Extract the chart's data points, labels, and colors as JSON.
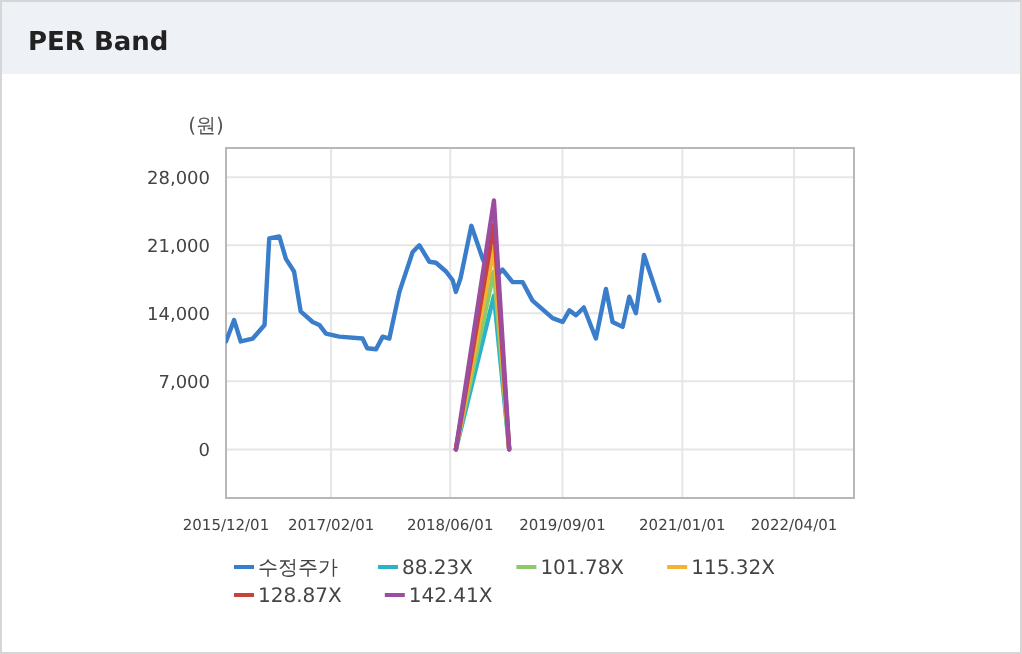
{
  "chart_data": {
    "type": "line",
    "title": "PER Band",
    "ylabel": "(원)",
    "xlim": [
      "2015-12-01",
      "2022-12-01"
    ],
    "xticks": [
      {
        "value": "2015-12-01",
        "label": "2015/12/01"
      },
      {
        "value": "2017-02-01",
        "label": "2017/02/01"
      },
      {
        "value": "2018-06-01",
        "label": "2018/06/01"
      },
      {
        "value": "2019-09-01",
        "label": "2019/09/01"
      },
      {
        "value": "2021-01-01",
        "label": "2021/01/01"
      },
      {
        "value": "2022-04-01",
        "label": "2022/04/01"
      }
    ],
    "ylim": [
      -5000,
      31000
    ],
    "yticks": [
      0,
      {
        "value": 7000,
        "label": "7,000"
      },
      {
        "value": 14000,
        "label": "14,000"
      },
      {
        "value": 21000,
        "label": "21,000"
      },
      {
        "value": 28000,
        "label": "28,000"
      }
    ],
    "grid": true,
    "legend": "bottom",
    "marker": "none",
    "line_style": "solid",
    "series": [
      {
        "name": "수정주가",
        "color": "#3a7ecb",
        "x": [
          "2015-12-01",
          "2016-01-03",
          "2016-01-30",
          "2016-03-19",
          "2016-05-06",
          "2016-05-25",
          "2016-07-05",
          "2016-08-01",
          "2016-09-03",
          "2016-09-30",
          "2016-11-18",
          "2016-12-15",
          "2017-01-11",
          "2017-03-06",
          "2017-06-09",
          "2017-06-28",
          "2017-08-03",
          "2017-08-30",
          "2017-09-26",
          "2017-11-06",
          "2017-12-30",
          "2018-01-26",
          "2018-03-08",
          "2018-04-04",
          "2018-05-15",
          "2018-06-11",
          "2018-06-24",
          "2018-07-13",
          "2018-08-26",
          "2018-10-11",
          "2018-11-21",
          "2018-12-31",
          "2019-02-10",
          "2019-03-23",
          "2019-05-02",
          "2019-07-23",
          "2019-09-02",
          "2019-09-29",
          "2019-10-26",
          "2019-11-27",
          "2020-01-15",
          "2020-02-25",
          "2020-03-23",
          "2020-05-03",
          "2020-05-30",
          "2020-06-26",
          "2020-07-29",
          "2020-09-29"
        ],
        "values": [
          11100,
          13300,
          11100,
          11400,
          12800,
          21700,
          21900,
          19600,
          18300,
          14200,
          13100,
          12800,
          11900,
          11600,
          11400,
          10400,
          10300,
          11600,
          11400,
          16200,
          20300,
          21000,
          19300,
          19200,
          18300,
          17400,
          16200,
          17600,
          23000,
          19600,
          17400,
          18500,
          17200,
          17200,
          15300,
          13500,
          13100,
          14300,
          13800,
          14600,
          11400,
          16500,
          13100,
          12600,
          15700,
          14000,
          20000,
          15300
        ]
      },
      {
        "name": "88.23X",
        "color": "#2ab3c6",
        "x": [
          "2018-06-24",
          "2018-11-26",
          "2019-01-27"
        ],
        "values": [
          0,
          15800,
          0
        ]
      },
      {
        "name": "101.78X",
        "color": "#8dc86b",
        "x": [
          "2018-06-24",
          "2018-11-26",
          "2019-01-27"
        ],
        "values": [
          0,
          18300,
          0
        ]
      },
      {
        "name": "115.32X",
        "color": "#f2b233",
        "x": [
          "2018-06-24",
          "2018-11-26",
          "2019-01-27"
        ],
        "values": [
          0,
          20700,
          0
        ]
      },
      {
        "name": "128.87X",
        "color": "#c8413b",
        "x": [
          "2018-06-24",
          "2018-11-26",
          "2019-01-27"
        ],
        "values": [
          0,
          23100,
          0
        ]
      },
      {
        "name": "142.41X",
        "color": "#9b4d9f",
        "x": [
          "2018-06-24",
          "2018-11-26",
          "2019-01-27"
        ],
        "values": [
          0,
          25600,
          0
        ]
      }
    ]
  }
}
